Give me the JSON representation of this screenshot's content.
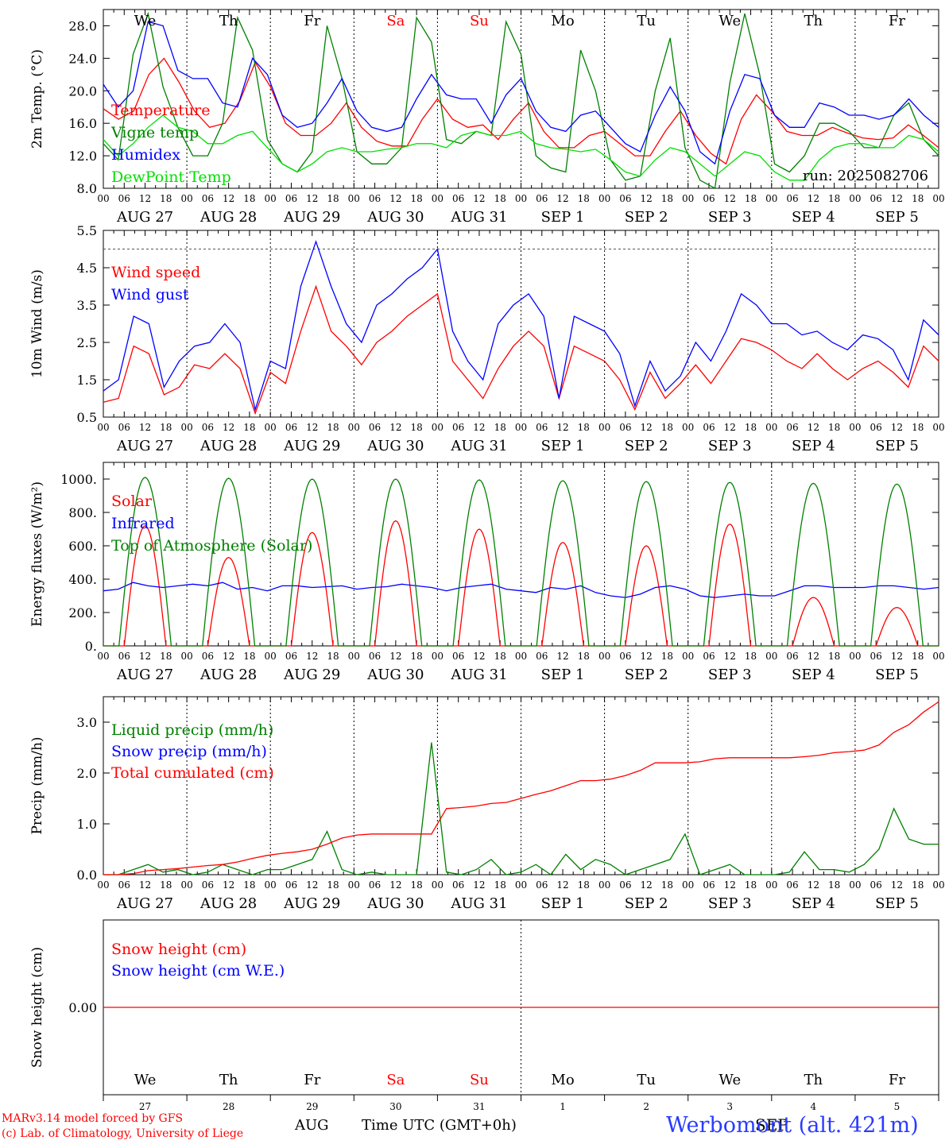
{
  "run_label": "run: 2025082706",
  "footer": {
    "model_line1": "MARv3.14 model forced by GFS",
    "model_line2": "(c) Lab. of Climatology, University of Liege",
    "station": "Werbomont (alt. 421m)",
    "axis_title": "Time UTC (GMT+0h)",
    "month_aug": "AUG",
    "month_sep": "SEP"
  },
  "colors": {
    "red": "#ff0000",
    "green": "#008000",
    "blue": "#0000ff",
    "light_green": "#00e000",
    "weekend": "#ff0000"
  },
  "x_axis": {
    "hour_labels": [
      "00",
      "06",
      "12",
      "18"
    ],
    "date_labels": [
      "AUG 27",
      "AUG 28",
      "AUG 29",
      "AUG 30",
      "AUG 31",
      "SEP  1",
      "SEP  2",
      "SEP  3",
      "SEP  4",
      "SEP  5"
    ],
    "weekday_labels": [
      "We",
      "Th",
      "Fr",
      "Sa",
      "Su",
      "Mo",
      "Tu",
      "We",
      "Th",
      "Fr"
    ],
    "weekend_flags": [
      false,
      false,
      false,
      true,
      true,
      false,
      false,
      false,
      false,
      false
    ],
    "day_numbers": [
      "27",
      "28",
      "29",
      "30",
      "31",
      "1",
      "2",
      "3",
      "4",
      "5"
    ]
  },
  "chart_data": [
    {
      "type": "line",
      "ylabel": "2m Temp. (°C)",
      "ylim": [
        8,
        30
      ],
      "yticks": [
        "8.0",
        "12.0",
        "16.0",
        "20.0",
        "24.0",
        "28.0"
      ],
      "yticks_values": [
        8,
        12,
        16,
        20,
        24,
        28
      ],
      "x_step_hours": 6,
      "series": [
        {
          "name": "Temperature",
          "color": "#ff0000",
          "values": [
            17.8,
            16.5,
            17.5,
            22.0,
            24.0,
            21.0,
            17.5,
            15.5,
            16.0,
            18.8,
            23.5,
            20.5,
            16.0,
            14.5,
            14.5,
            16.0,
            18.5,
            15.5,
            13.8,
            13.2,
            13.2,
            16.5,
            19.0,
            16.5,
            15.5,
            15.8,
            14.0,
            16.5,
            18.5,
            15.0,
            13.0,
            13.0,
            14.5,
            15.0,
            13.5,
            12.0,
            12.0,
            15.0,
            17.5,
            14.5,
            12.3,
            11.0,
            16.5,
            19.5,
            17.5,
            15.0,
            14.5,
            14.5,
            15.5,
            14.8,
            14.2,
            14.0,
            14.2,
            15.8,
            14.5,
            13.0
          ]
        },
        {
          "name": "Vigne temp",
          "color": "#008000",
          "values": [
            13.5,
            11.5,
            24.5,
            29.5,
            20.5,
            15.5,
            12.0,
            12.0,
            16.0,
            29.0,
            25.0,
            14.0,
            11.0,
            10.0,
            12.5,
            28.0,
            21.5,
            12.5,
            11.0,
            11.0,
            13.0,
            29.0,
            26.0,
            14.0,
            13.5,
            15.0,
            14.5,
            28.5,
            24.5,
            12.0,
            10.5,
            10.0,
            25.0,
            20.0,
            11.5,
            9.0,
            9.5,
            20.0,
            26.5,
            13.0,
            9.0,
            8.0,
            21.0,
            29.5,
            22.0,
            11.0,
            10.0,
            12.0,
            16.0,
            16.0,
            15.0,
            13.0,
            13.0,
            17.0,
            18.5,
            14.0,
            12.0
          ]
        },
        {
          "name": "Humidex",
          "color": "#0000ff",
          "values": [
            20.8,
            18.0,
            20.0,
            28.5,
            28.0,
            22.5,
            21.5,
            21.5,
            18.5,
            18.0,
            24.0,
            22.0,
            17.0,
            15.5,
            16.0,
            18.5,
            21.5,
            17.5,
            15.5,
            15.0,
            15.5,
            19.0,
            22.0,
            19.5,
            19.0,
            19.0,
            16.0,
            19.5,
            21.5,
            17.5,
            15.5,
            15.0,
            17.0,
            17.5,
            15.5,
            13.5,
            12.5,
            17.0,
            20.5,
            17.5,
            12.5,
            11.0,
            17.5,
            22.0,
            21.5,
            17.0,
            15.5,
            15.5,
            18.5,
            18.0,
            17.0,
            17.0,
            16.5,
            17.0,
            19.0,
            17.0,
            15.5
          ]
        },
        {
          "name": "DewPoint Temp",
          "color": "#00e000",
          "values": [
            14.0,
            12.0,
            13.5,
            15.5,
            17.0,
            15.5,
            15.0,
            13.5,
            13.5,
            14.5,
            15.0,
            13.0,
            11.0,
            10.0,
            11.0,
            12.5,
            13.0,
            12.5,
            12.5,
            12.8,
            13.0,
            13.5,
            13.5,
            13.0,
            14.5,
            15.0,
            14.5,
            14.5,
            15.0,
            13.5,
            13.0,
            12.8,
            12.5,
            12.8,
            11.5,
            10.0,
            9.5,
            11.5,
            13.0,
            12.5,
            11.0,
            9.5,
            11.0,
            12.5,
            12.0,
            10.0,
            9.0,
            9.0,
            11.5,
            13.0,
            13.5,
            13.5,
            13.0,
            13.0,
            14.5,
            14.0,
            12.5
          ]
        }
      ]
    },
    {
      "type": "line",
      "ylabel": "10m Wind (m/s)",
      "ylim": [
        0.5,
        5.5
      ],
      "yticks": [
        "0.5",
        "1.5",
        "2.5",
        "3.5",
        "4.5",
        "5.5"
      ],
      "yticks_values": [
        0.5,
        1.5,
        2.5,
        3.5,
        4.5,
        5.5
      ],
      "reference_line": 5.0,
      "x_step_hours": 6,
      "series": [
        {
          "name": "Wind speed",
          "color": "#ff0000",
          "values": [
            0.9,
            1.0,
            2.4,
            2.2,
            1.1,
            1.3,
            1.9,
            1.8,
            2.2,
            1.8,
            0.6,
            1.7,
            1.4,
            2.8,
            4.0,
            2.8,
            2.4,
            1.9,
            2.5,
            2.8,
            3.2,
            3.5,
            3.8,
            2.0,
            1.5,
            1.0,
            1.8,
            2.4,
            2.8,
            2.4,
            1.0,
            2.4,
            2.2,
            2.0,
            1.5,
            0.7,
            1.7,
            1.0,
            1.4,
            1.9,
            1.4,
            2.0,
            2.6,
            2.5,
            2.3,
            2.0,
            1.8,
            2.2,
            1.8,
            1.5,
            1.8,
            2.0,
            1.7,
            1.3,
            2.4,
            2.0
          ]
        },
        {
          "name": "Wind gust",
          "color": "#0000ff",
          "values": [
            1.2,
            1.5,
            3.2,
            3.0,
            1.3,
            2.0,
            2.4,
            2.5,
            3.0,
            2.5,
            0.7,
            2.0,
            1.8,
            4.0,
            5.2,
            4.0,
            3.0,
            2.5,
            3.5,
            3.8,
            4.2,
            4.5,
            5.0,
            2.8,
            2.0,
            1.5,
            3.0,
            3.5,
            3.8,
            3.2,
            1.0,
            3.2,
            3.0,
            2.8,
            2.2,
            0.8,
            2.0,
            1.2,
            1.6,
            2.5,
            2.0,
            2.8,
            3.8,
            3.5,
            3.0,
            3.0,
            2.7,
            2.8,
            2.5,
            2.3,
            2.7,
            2.6,
            2.3,
            1.5,
            3.1,
            2.7
          ]
        }
      ]
    },
    {
      "type": "line",
      "ylabel": "Energy fluxes (W/m²)",
      "ylim": [
        0,
        1100
      ],
      "yticks": [
        "0.",
        "200.",
        "400.",
        "600.",
        "800.",
        "1000."
      ],
      "yticks_values": [
        0,
        200,
        400,
        600,
        800,
        1000
      ],
      "x_step_hours": 6,
      "series": [
        {
          "name": "Solar",
          "color": "#ff0000",
          "day_peaks": [
            720,
            530,
            680,
            750,
            700,
            620,
            600,
            730,
            290,
            230
          ]
        },
        {
          "name": "Infrared",
          "color": "#0000ff",
          "values": [
            330,
            340,
            380,
            360,
            350,
            360,
            370,
            360,
            380,
            340,
            350,
            330,
            360,
            360,
            350,
            355,
            360,
            340,
            350,
            355,
            370,
            360,
            350,
            330,
            350,
            360,
            370,
            340,
            330,
            320,
            350,
            340,
            360,
            320,
            300,
            290,
            310,
            350,
            360,
            340,
            300,
            290,
            300,
            310,
            300,
            300,
            330,
            360,
            360,
            350,
            350,
            350,
            360,
            360,
            350,
            340,
            350
          ]
        },
        {
          "name": "Top of Atmosphere (Solar)",
          "color": "#008000",
          "day_peaks": [
            1010,
            1005,
            1000,
            1000,
            995,
            990,
            985,
            980,
            975,
            970
          ]
        }
      ]
    },
    {
      "type": "line",
      "ylabel": "Precip (mm/h)",
      "ylim": [
        0,
        3.5
      ],
      "yticks": [
        "0.0",
        "1.0",
        "2.0",
        "3.0"
      ],
      "yticks_values": [
        0,
        1,
        2,
        3
      ],
      "x_step_hours": 6,
      "series": [
        {
          "name": "Liquid precip (mm/h)",
          "color": "#008000",
          "values": [
            0.0,
            0.0,
            0.1,
            0.2,
            0.05,
            0.1,
            0.0,
            0.05,
            0.2,
            0.1,
            0.0,
            0.1,
            0.1,
            0.2,
            0.3,
            0.85,
            0.1,
            0.0,
            0.05,
            0.0,
            0.0,
            0.0,
            2.6,
            0.05,
            0.0,
            0.1,
            0.3,
            0.0,
            0.05,
            0.2,
            0.0,
            0.4,
            0.1,
            0.3,
            0.2,
            0.0,
            0.1,
            0.2,
            0.3,
            0.8,
            0.0,
            0.1,
            0.2,
            0.0,
            0.0,
            0.0,
            0.05,
            0.45,
            0.1,
            0.1,
            0.05,
            0.2,
            0.5,
            1.3,
            0.7,
            0.6,
            0.6
          ]
        },
        {
          "name": "Snow precip (mm/h)",
          "color": "#0000ff"
        },
        {
          "name": "Total cumulated (cm)",
          "color": "#ff0000",
          "values": [
            0.0,
            0.0,
            0.02,
            0.08,
            0.1,
            0.12,
            0.15,
            0.18,
            0.2,
            0.25,
            0.32,
            0.38,
            0.42,
            0.45,
            0.5,
            0.6,
            0.72,
            0.78,
            0.8,
            0.8,
            0.8,
            0.8,
            0.8,
            1.3,
            1.32,
            1.35,
            1.4,
            1.42,
            1.5,
            1.58,
            1.65,
            1.75,
            1.85,
            1.85,
            1.88,
            1.95,
            2.05,
            2.2,
            2.2,
            2.2,
            2.22,
            2.28,
            2.3,
            2.3,
            2.3,
            2.3,
            2.3,
            2.32,
            2.35,
            2.4,
            2.42,
            2.45,
            2.55,
            2.8,
            2.95,
            3.2,
            3.4
          ]
        }
      ]
    },
    {
      "type": "line",
      "ylabel": "Snow height (cm)",
      "ylim": [
        -1,
        1
      ],
      "yticks": [
        "0.00"
      ],
      "yticks_values": [
        0
      ],
      "series": [
        {
          "name": "Snow height (cm)",
          "color": "#ff0000",
          "values": [
            0,
            0
          ]
        },
        {
          "name": "Snow height (cm W.E.)",
          "color": "#0000ff"
        }
      ]
    }
  ]
}
